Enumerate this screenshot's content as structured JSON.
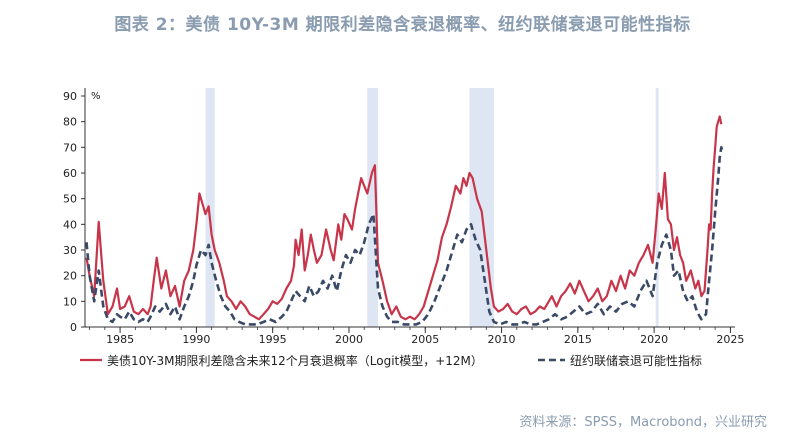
{
  "title": "图表 2：美债 10Y-3M 期限利差隐含衰退概率、纽约联储衰退可能性指标",
  "source": "资料来源：SPSS，Macrobond，兴业研究",
  "colors": {
    "series1": "#c8354a",
    "series2": "#3a4a66",
    "recession": "#dde6f2",
    "axis": "#333333",
    "title": "#8a9cb0"
  },
  "chart_data": {
    "type": "line",
    "title": "图表 2：美债 10Y-3M 期限利差隐含衰退概率、纽约联储衰退可能性指标",
    "xlabel": "",
    "ylabel": "%",
    "xlim": [
      1982.7,
      2025.3
    ],
    "ylim": [
      0,
      90
    ],
    "y_ticks": [
      0,
      10,
      20,
      30,
      40,
      50,
      60,
      70,
      80,
      90
    ],
    "x_ticks": [
      1985,
      1990,
      1995,
      2000,
      2005,
      2010,
      2015,
      2020,
      2025
    ],
    "grid": false,
    "legend_position": "bottom",
    "recession_periods": [
      [
        1990.6,
        1991.2
      ],
      [
        2001.2,
        2001.9
      ],
      [
        2007.9,
        2009.5
      ],
      [
        2020.1,
        2020.3
      ]
    ],
    "series": [
      {
        "name": "美债10Y-3M期限利差隐含未来12个月衰退概率（Logit模型，+12M）",
        "style": "solid",
        "points": [
          [
            1982.8,
            27
          ],
          [
            1983.0,
            20
          ],
          [
            1983.3,
            12
          ],
          [
            1983.6,
            41
          ],
          [
            1983.9,
            18
          ],
          [
            1984.2,
            5
          ],
          [
            1984.5,
            8
          ],
          [
            1984.8,
            15
          ],
          [
            1985.0,
            7
          ],
          [
            1985.3,
            8
          ],
          [
            1985.6,
            12
          ],
          [
            1985.9,
            6
          ],
          [
            1986.2,
            5
          ],
          [
            1986.5,
            7
          ],
          [
            1986.8,
            5
          ],
          [
            1987.0,
            8
          ],
          [
            1987.2,
            18
          ],
          [
            1987.4,
            27
          ],
          [
            1987.7,
            15
          ],
          [
            1988.0,
            22
          ],
          [
            1988.3,
            12
          ],
          [
            1988.6,
            16
          ],
          [
            1988.9,
            8
          ],
          [
            1989.2,
            18
          ],
          [
            1989.5,
            22
          ],
          [
            1989.8,
            30
          ],
          [
            1990.0,
            40
          ],
          [
            1990.2,
            52
          ],
          [
            1990.4,
            48
          ],
          [
            1990.6,
            44
          ],
          [
            1990.8,
            47
          ],
          [
            1991.0,
            36
          ],
          [
            1991.2,
            30
          ],
          [
            1991.5,
            25
          ],
          [
            1991.8,
            18
          ],
          [
            1992.0,
            12
          ],
          [
            1992.3,
            10
          ],
          [
            1992.6,
            7
          ],
          [
            1992.9,
            10
          ],
          [
            1993.2,
            8
          ],
          [
            1993.5,
            5
          ],
          [
            1993.8,
            4
          ],
          [
            1994.1,
            3
          ],
          [
            1994.4,
            5
          ],
          [
            1994.7,
            7
          ],
          [
            1995.0,
            10
          ],
          [
            1995.3,
            9
          ],
          [
            1995.6,
            11
          ],
          [
            1995.9,
            15
          ],
          [
            1996.2,
            18
          ],
          [
            1996.4,
            24
          ],
          [
            1996.5,
            34
          ],
          [
            1996.7,
            28
          ],
          [
            1996.9,
            38
          ],
          [
            1997.1,
            22
          ],
          [
            1997.3,
            28
          ],
          [
            1997.5,
            36
          ],
          [
            1997.7,
            30
          ],
          [
            1997.9,
            25
          ],
          [
            1998.2,
            28
          ],
          [
            1998.5,
            38
          ],
          [
            1998.8,
            30
          ],
          [
            1999.0,
            26
          ],
          [
            1999.3,
            40
          ],
          [
            1999.5,
            34
          ],
          [
            1999.7,
            44
          ],
          [
            1999.9,
            42
          ],
          [
            2000.2,
            38
          ],
          [
            2000.4,
            46
          ],
          [
            2000.6,
            52
          ],
          [
            2000.8,
            58
          ],
          [
            2001.0,
            55
          ],
          [
            2001.2,
            52
          ],
          [
            2001.5,
            60
          ],
          [
            2001.7,
            63
          ],
          [
            2001.9,
            25
          ],
          [
            2002.2,
            18
          ],
          [
            2002.5,
            10
          ],
          [
            2002.8,
            5
          ],
          [
            2003.1,
            8
          ],
          [
            2003.4,
            4
          ],
          [
            2003.7,
            3
          ],
          [
            2004.0,
            4
          ],
          [
            2004.3,
            3
          ],
          [
            2004.6,
            5
          ],
          [
            2004.9,
            8
          ],
          [
            2005.2,
            14
          ],
          [
            2005.5,
            20
          ],
          [
            2005.8,
            26
          ],
          [
            2006.1,
            35
          ],
          [
            2006.4,
            40
          ],
          [
            2006.7,
            47
          ],
          [
            2007.0,
            55
          ],
          [
            2007.3,
            52
          ],
          [
            2007.5,
            58
          ],
          [
            2007.7,
            55
          ],
          [
            2007.9,
            60
          ],
          [
            2008.1,
            58
          ],
          [
            2008.4,
            50
          ],
          [
            2008.7,
            45
          ],
          [
            2009.0,
            30
          ],
          [
            2009.3,
            15
          ],
          [
            2009.5,
            8
          ],
          [
            2009.8,
            6
          ],
          [
            2010.1,
            7
          ],
          [
            2010.4,
            9
          ],
          [
            2010.7,
            6
          ],
          [
            2011.0,
            5
          ],
          [
            2011.3,
            7
          ],
          [
            2011.6,
            8
          ],
          [
            2011.9,
            5
          ],
          [
            2012.2,
            6
          ],
          [
            2012.5,
            8
          ],
          [
            2012.8,
            7
          ],
          [
            2013.0,
            9
          ],
          [
            2013.3,
            12
          ],
          [
            2013.6,
            8
          ],
          [
            2013.9,
            12
          ],
          [
            2014.2,
            14
          ],
          [
            2014.5,
            17
          ],
          [
            2014.8,
            13
          ],
          [
            2015.1,
            18
          ],
          [
            2015.4,
            14
          ],
          [
            2015.7,
            10
          ],
          [
            2016.0,
            12
          ],
          [
            2016.3,
            15
          ],
          [
            2016.6,
            10
          ],
          [
            2016.9,
            12
          ],
          [
            2017.2,
            18
          ],
          [
            2017.5,
            14
          ],
          [
            2017.8,
            20
          ],
          [
            2018.1,
            15
          ],
          [
            2018.4,
            22
          ],
          [
            2018.7,
            20
          ],
          [
            2019.0,
            25
          ],
          [
            2019.3,
            28
          ],
          [
            2019.6,
            32
          ],
          [
            2019.9,
            25
          ],
          [
            2020.1,
            38
          ],
          [
            2020.3,
            52
          ],
          [
            2020.5,
            46
          ],
          [
            2020.7,
            60
          ],
          [
            2020.9,
            42
          ],
          [
            2021.1,
            40
          ],
          [
            2021.3,
            30
          ],
          [
            2021.5,
            35
          ],
          [
            2021.7,
            28
          ],
          [
            2021.9,
            25
          ],
          [
            2022.1,
            18
          ],
          [
            2022.4,
            22
          ],
          [
            2022.7,
            15
          ],
          [
            2022.9,
            18
          ],
          [
            2023.1,
            12
          ],
          [
            2023.3,
            14
          ],
          [
            2023.5,
            30
          ],
          [
            2023.6,
            40
          ],
          [
            2023.7,
            38
          ],
          [
            2023.8,
            52
          ],
          [
            2023.9,
            62
          ],
          [
            2024.0,
            70
          ],
          [
            2024.1,
            78
          ],
          [
            2024.2,
            80
          ],
          [
            2024.3,
            82
          ],
          [
            2024.4,
            79
          ]
        ]
      },
      {
        "name": "纽约联储衰退可能性指标",
        "style": "dashed",
        "points": [
          [
            1982.8,
            33
          ],
          [
            1983.0,
            20
          ],
          [
            1983.3,
            10
          ],
          [
            1983.6,
            22
          ],
          [
            1983.9,
            8
          ],
          [
            1984.2,
            3
          ],
          [
            1984.5,
            2
          ],
          [
            1984.8,
            5
          ],
          [
            1985.0,
            4
          ],
          [
            1985.3,
            3
          ],
          [
            1985.6,
            6
          ],
          [
            1985.9,
            3
          ],
          [
            1986.2,
            2
          ],
          [
            1986.5,
            3
          ],
          [
            1986.8,
            2
          ],
          [
            1987.0,
            4
          ],
          [
            1987.3,
            8
          ],
          [
            1987.6,
            6
          ],
          [
            1988.0,
            9
          ],
          [
            1988.3,
            5
          ],
          [
            1988.6,
            8
          ],
          [
            1988.9,
            3
          ],
          [
            1989.2,
            8
          ],
          [
            1989.5,
            12
          ],
          [
            1989.8,
            18
          ],
          [
            1990.0,
            24
          ],
          [
            1990.3,
            30
          ],
          [
            1990.6,
            28
          ],
          [
            1990.8,
            32
          ],
          [
            1991.0,
            25
          ],
          [
            1991.3,
            18
          ],
          [
            1991.6,
            12
          ],
          [
            1991.9,
            8
          ],
          [
            1992.2,
            6
          ],
          [
            1992.5,
            3
          ],
          [
            1992.8,
            2
          ],
          [
            1993.2,
            1
          ],
          [
            1993.6,
            1
          ],
          [
            1994.0,
            1
          ],
          [
            1994.4,
            2
          ],
          [
            1994.8,
            3
          ],
          [
            1995.2,
            2
          ],
          [
            1995.6,
            4
          ],
          [
            1995.9,
            6
          ],
          [
            1996.2,
            10
          ],
          [
            1996.5,
            14
          ],
          [
            1996.8,
            12
          ],
          [
            1997.1,
            10
          ],
          [
            1997.4,
            16
          ],
          [
            1997.7,
            12
          ],
          [
            1998.0,
            14
          ],
          [
            1998.3,
            18
          ],
          [
            1998.6,
            15
          ],
          [
            1998.9,
            20
          ],
          [
            1999.2,
            14
          ],
          [
            1999.5,
            22
          ],
          [
            1999.8,
            28
          ],
          [
            2000.1,
            25
          ],
          [
            2000.4,
            30
          ],
          [
            2000.7,
            28
          ],
          [
            2001.0,
            33
          ],
          [
            2001.3,
            40
          ],
          [
            2001.6,
            44
          ],
          [
            2001.9,
            15
          ],
          [
            2002.2,
            8
          ],
          [
            2002.5,
            4
          ],
          [
            2002.8,
            2
          ],
          [
            2003.2,
            2
          ],
          [
            2003.6,
            1
          ],
          [
            2004.0,
            1
          ],
          [
            2004.4,
            1
          ],
          [
            2004.8,
            2
          ],
          [
            2005.2,
            5
          ],
          [
            2005.6,
            10
          ],
          [
            2006.0,
            16
          ],
          [
            2006.4,
            22
          ],
          [
            2006.8,
            30
          ],
          [
            2007.1,
            36
          ],
          [
            2007.4,
            33
          ],
          [
            2007.7,
            38
          ],
          [
            2008.0,
            40
          ],
          [
            2008.3,
            34
          ],
          [
            2008.6,
            30
          ],
          [
            2008.9,
            18
          ],
          [
            2009.2,
            6
          ],
          [
            2009.5,
            2
          ],
          [
            2009.9,
            1
          ],
          [
            2010.3,
            2
          ],
          [
            2010.7,
            1
          ],
          [
            2011.1,
            1
          ],
          [
            2011.5,
            2
          ],
          [
            2011.9,
            1
          ],
          [
            2012.3,
            1
          ],
          [
            2012.7,
            2
          ],
          [
            2013.1,
            3
          ],
          [
            2013.5,
            5
          ],
          [
            2013.9,
            3
          ],
          [
            2014.3,
            4
          ],
          [
            2014.7,
            6
          ],
          [
            2015.1,
            8
          ],
          [
            2015.5,
            5
          ],
          [
            2015.9,
            6
          ],
          [
            2016.3,
            9
          ],
          [
            2016.7,
            5
          ],
          [
            2017.1,
            8
          ],
          [
            2017.5,
            6
          ],
          [
            2017.9,
            9
          ],
          [
            2018.3,
            10
          ],
          [
            2018.7,
            8
          ],
          [
            2019.1,
            14
          ],
          [
            2019.5,
            18
          ],
          [
            2019.9,
            12
          ],
          [
            2020.2,
            25
          ],
          [
            2020.5,
            32
          ],
          [
            2020.8,
            36
          ],
          [
            2021.1,
            30
          ],
          [
            2021.3,
            20
          ],
          [
            2021.6,
            22
          ],
          [
            2021.9,
            14
          ],
          [
            2022.2,
            10
          ],
          [
            2022.5,
            12
          ],
          [
            2022.8,
            6
          ],
          [
            2023.1,
            3
          ],
          [
            2023.4,
            5
          ],
          [
            2023.6,
            18
          ],
          [
            2023.8,
            30
          ],
          [
            2024.0,
            45
          ],
          [
            2024.2,
            58
          ],
          [
            2024.3,
            66
          ],
          [
            2024.4,
            70
          ],
          [
            2024.5,
            68
          ]
        ]
      }
    ]
  }
}
